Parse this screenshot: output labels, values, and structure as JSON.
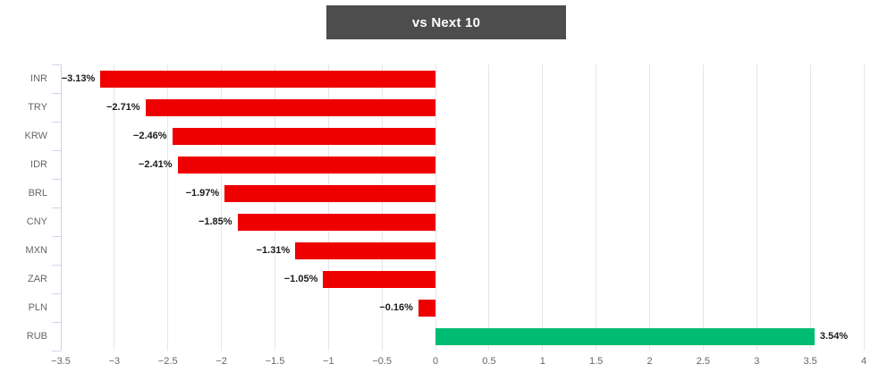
{
  "title": "vs Next 10",
  "chart_data": {
    "type": "bar",
    "orientation": "horizontal",
    "title": "vs Next 10",
    "xlabel": "",
    "ylabel": "",
    "categories": [
      "INR",
      "TRY",
      "KRW",
      "IDR",
      "BRL",
      "CNY",
      "MXN",
      "ZAR",
      "PLN",
      "RUB"
    ],
    "values": [
      -3.13,
      -2.71,
      -2.46,
      -2.41,
      -1.97,
      -1.85,
      -1.31,
      -1.05,
      -0.16,
      3.54
    ],
    "data_labels": [
      "−3.13%",
      "−2.71%",
      "−2.46%",
      "−2.41%",
      "−1.97%",
      "−1.85%",
      "−1.31%",
      "−1.05%",
      "−0.16%",
      "3.54%"
    ],
    "xlim": [
      -3.5,
      4
    ],
    "xticks": [
      -3.5,
      -3,
      -2.5,
      -2,
      -1.5,
      -1,
      -0.5,
      0,
      0.5,
      1,
      1.5,
      2,
      2.5,
      3,
      3.5,
      4
    ],
    "xtick_labels": [
      "−3.5",
      "−3",
      "−2.5",
      "−2",
      "−1.5",
      "−1",
      "−0.5",
      "0",
      "0.5",
      "1",
      "1.5",
      "2",
      "2.5",
      "3",
      "3.5",
      "4"
    ],
    "grid": true,
    "legend": false
  },
  "colors": {
    "title_bg": "#4d4d4d",
    "title_text": "#ffffff",
    "negative_bar": "#ee0000",
    "positive_bar": "#00bc72",
    "gridline": "#e6e6e6",
    "axis_line": "#ccd6eb",
    "axis_label": "#666666",
    "data_label": "#1a1a1a",
    "background": "#ffffff"
  }
}
